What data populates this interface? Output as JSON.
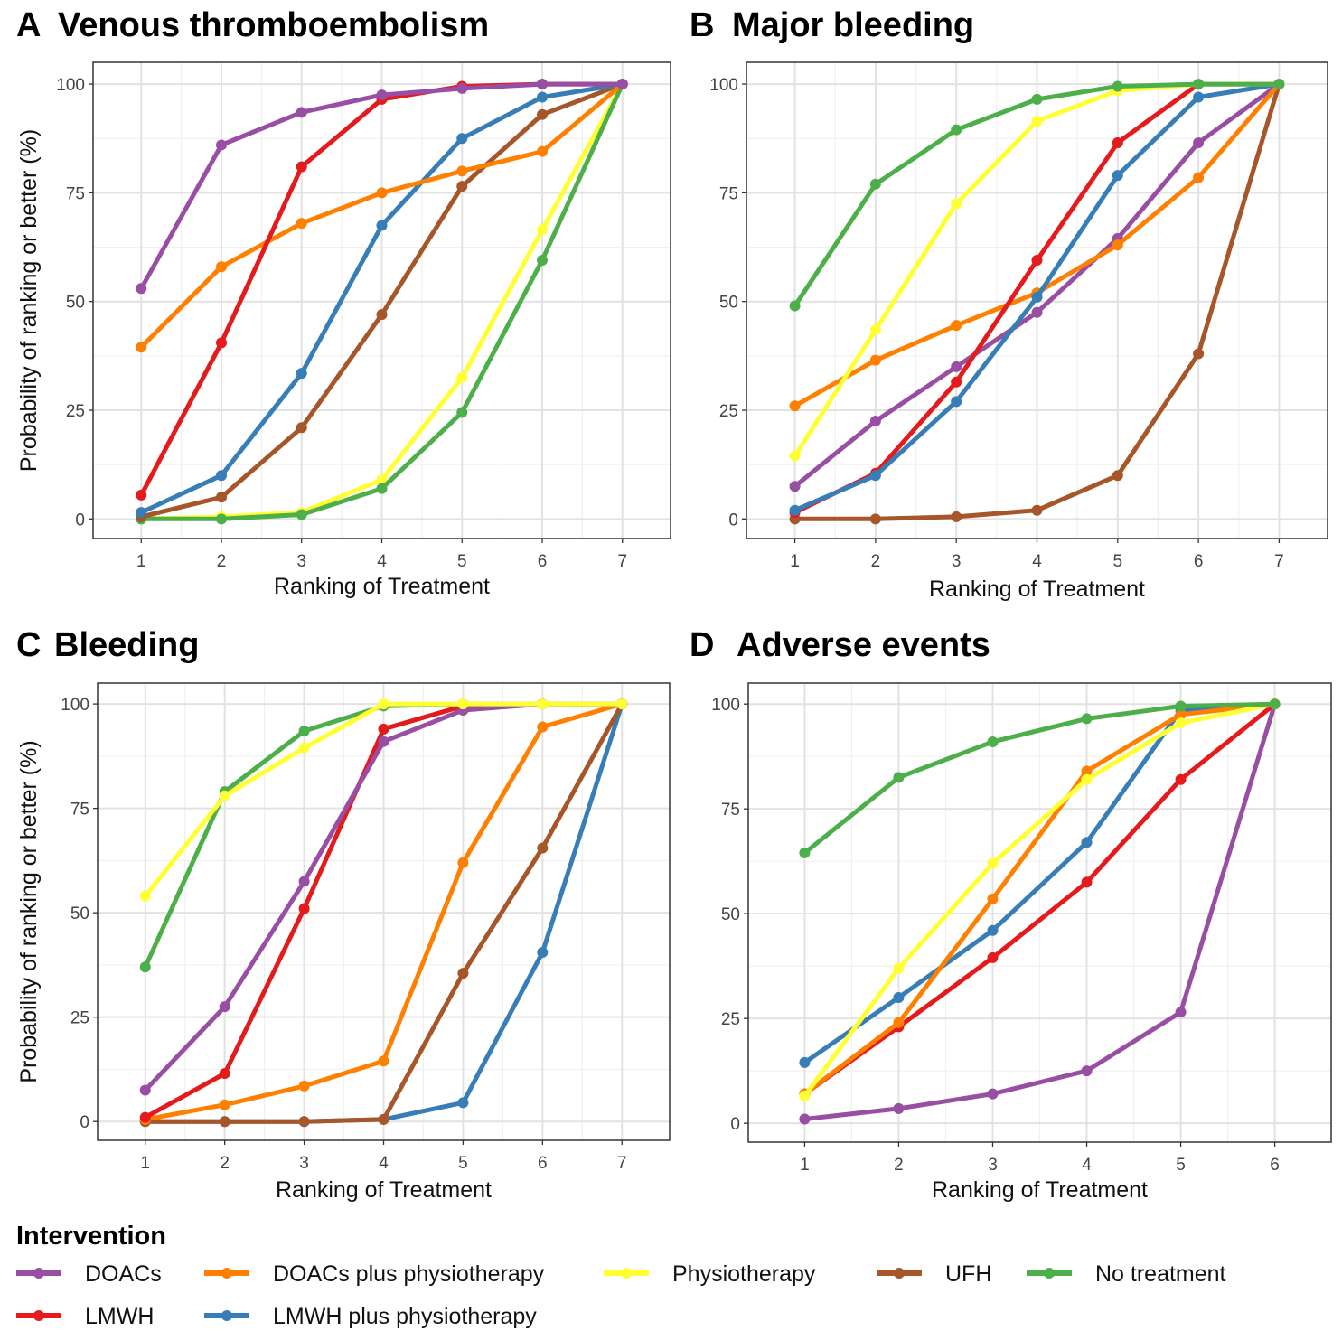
{
  "chart_data": [
    {
      "type": "line",
      "panel_letter": "A",
      "title": "Venous thromboembolism",
      "xlabel": "Ranking of Treatment",
      "ylabel": "Probability of ranking or better (%)",
      "x": [
        1,
        2,
        3,
        4,
        5,
        6,
        7
      ],
      "xticks": [
        "1",
        "2",
        "3",
        "4",
        "5",
        "6",
        "7"
      ],
      "yticks": [
        "0",
        "25",
        "50",
        "75",
        "100"
      ],
      "ylim": [
        -4.5,
        105
      ],
      "grid": true,
      "series": [
        {
          "name": "DOACs",
          "values": [
            53,
            86,
            93.5,
            97.5,
            99,
            100,
            100
          ]
        },
        {
          "name": "DOACs plus physiotherapy",
          "values": [
            39.5,
            58,
            68,
            75,
            80,
            84.5,
            100
          ]
        },
        {
          "name": "Physiotherapy",
          "values": [
            0,
            0.5,
            1.5,
            9,
            32.5,
            66.5,
            100
          ]
        },
        {
          "name": "UFH",
          "values": [
            0.5,
            5,
            21,
            47,
            76.5,
            93,
            100
          ]
        },
        {
          "name": "No treatment",
          "values": [
            0,
            0,
            1,
            7,
            24.5,
            59.5,
            100
          ]
        },
        {
          "name": "LMWH",
          "values": [
            5.5,
            40.5,
            81,
            96.5,
            99.5,
            100,
            100
          ]
        },
        {
          "name": "LMWH plus physiotherapy",
          "values": [
            1.5,
            10,
            33.5,
            67.5,
            87.5,
            97,
            100
          ]
        }
      ]
    },
    {
      "type": "line",
      "panel_letter": "B",
      "title": "Major bleeding",
      "xlabel": "Ranking of Treatment",
      "ylabel": "",
      "x": [
        1,
        2,
        3,
        4,
        5,
        6,
        7
      ],
      "xticks": [
        "1",
        "2",
        "3",
        "4",
        "5",
        "6",
        "7"
      ],
      "yticks": [
        "0",
        "25",
        "50",
        "75",
        "100"
      ],
      "ylim": [
        -4.5,
        105
      ],
      "grid": true,
      "series": [
        {
          "name": "DOACs",
          "values": [
            7.5,
            22.5,
            35,
            47.5,
            64.5,
            86.5,
            100
          ]
        },
        {
          "name": "DOACs plus physiotherapy",
          "values": [
            26,
            36.5,
            44.5,
            52,
            63,
            78.5,
            100
          ]
        },
        {
          "name": "Physiotherapy",
          "values": [
            14.5,
            43.5,
            72.5,
            91.5,
            98.5,
            100,
            100
          ]
        },
        {
          "name": "UFH",
          "values": [
            0,
            0,
            0.5,
            2,
            10,
            38,
            100
          ]
        },
        {
          "name": "No treatment",
          "values": [
            49,
            77,
            89.5,
            96.5,
            99.5,
            100,
            100
          ]
        },
        {
          "name": "LMWH",
          "values": [
            1.5,
            10.5,
            31.5,
            59.5,
            86.5,
            100,
            100
          ]
        },
        {
          "name": "LMWH plus physiotherapy",
          "values": [
            2,
            10,
            27,
            51,
            79,
            97,
            100
          ]
        }
      ]
    },
    {
      "type": "line",
      "panel_letter": "C",
      "title": "Bleeding",
      "xlabel": "Ranking of Treatment",
      "ylabel": "Probability of ranking or better (%)",
      "x": [
        1,
        2,
        3,
        4,
        5,
        6,
        7
      ],
      "xticks": [
        "1",
        "2",
        "3",
        "4",
        "5",
        "6",
        "7"
      ],
      "yticks": [
        "0",
        "25",
        "50",
        "75",
        "100"
      ],
      "ylim": [
        -4.5,
        105
      ],
      "grid": true,
      "series": [
        {
          "name": "DOACs",
          "values": [
            7.5,
            27.5,
            57.5,
            91,
            98.5,
            100,
            100
          ]
        },
        {
          "name": "DOACs plus physiotherapy",
          "values": [
            0.5,
            4,
            8.5,
            14.5,
            62,
            94.5,
            100
          ]
        },
        {
          "name": "Physiotherapy",
          "values": [
            54,
            78,
            89.5,
            100,
            100,
            100,
            100
          ]
        },
        {
          "name": "UFH",
          "values": [
            0,
            0,
            0,
            0.5,
            35.5,
            65.5,
            100
          ]
        },
        {
          "name": "No treatment",
          "values": [
            37,
            79,
            93.5,
            99.5,
            100,
            100,
            100
          ]
        },
        {
          "name": "LMWH",
          "values": [
            1,
            11.5,
            51,
            94,
            99.5,
            100,
            100
          ]
        },
        {
          "name": "LMWH plus physiotherapy",
          "values": [
            0,
            0,
            0,
            0.5,
            4.5,
            40.5,
            100
          ]
        }
      ]
    },
    {
      "type": "line",
      "panel_letter": "D",
      "title": "Adverse events",
      "xlabel": "Ranking of Treatment",
      "ylabel": "",
      "x": [
        1,
        2,
        3,
        4,
        5,
        6
      ],
      "xticks": [
        "1",
        "2",
        "3",
        "4",
        "5",
        "6"
      ],
      "yticks": [
        "0",
        "25",
        "50",
        "75",
        "100"
      ],
      "ylim": [
        -4.5,
        105
      ],
      "grid": true,
      "series": [
        {
          "name": "DOACs",
          "values": [
            1,
            3.5,
            7,
            12.5,
            26.5,
            100
          ]
        },
        {
          "name": "DOACs plus physiotherapy",
          "values": [
            7,
            24,
            53.5,
            84,
            97.5,
            100
          ]
        },
        {
          "name": "Physiotherapy",
          "values": [
            6.5,
            37,
            62,
            82,
            95.5,
            100
          ]
        },
        {
          "name": "LMWH plus physiotherapy",
          "values": [
            14.5,
            30,
            46,
            67,
            98.5,
            100
          ]
        },
        {
          "name": "LMWH",
          "values": [
            7,
            23,
            39.5,
            57.5,
            82,
            100
          ]
        },
        {
          "name": "No treatment",
          "values": [
            64.5,
            82.5,
            91,
            96.5,
            99.5,
            100
          ]
        }
      ]
    }
  ],
  "legend": {
    "title": "Intervention",
    "items": [
      {
        "name": "DOACs",
        "color": "#984ea3"
      },
      {
        "name": "DOACs plus physiotherapy",
        "color": "#ff7f00"
      },
      {
        "name": "Physiotherapy",
        "color": "#ffff33"
      },
      {
        "name": "UFH",
        "color": "#a65628"
      },
      {
        "name": "No treatment",
        "color": "#4daf4a"
      },
      {
        "name": "LMWH",
        "color": "#e41a1c"
      },
      {
        "name": "LMWH plus physiotherapy",
        "color": "#377eb8"
      }
    ]
  }
}
